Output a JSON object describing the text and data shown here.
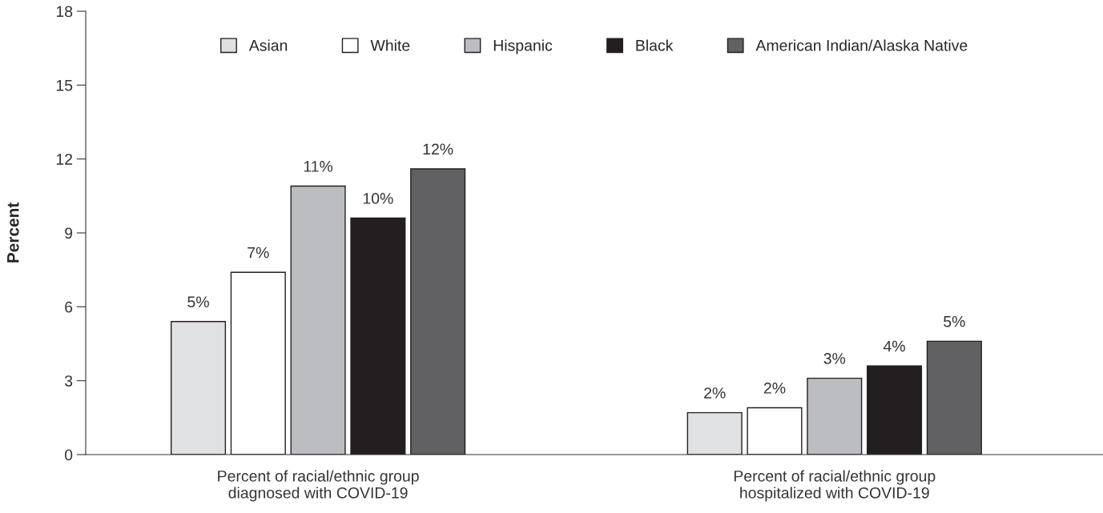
{
  "chart_data": {
    "type": "bar",
    "ylabel": "Percent",
    "categories": [
      "Percent of racial/ethnic group\ndiagnosed with COVID-19",
      "Percent of racial/ethnic group\nhospitalized with COVID-19"
    ],
    "series": [
      {
        "name": "Asian",
        "color": "#e0e1e3",
        "values": [
          5.4,
          1.7
        ],
        "value_labels": [
          "5%",
          "2%"
        ]
      },
      {
        "name": "White",
        "color": "#ffffff",
        "values": [
          7.4,
          1.9
        ],
        "value_labels": [
          "7%",
          "2%"
        ]
      },
      {
        "name": "Hispanic",
        "color": "#bcbdc0",
        "values": [
          10.9,
          3.1
        ],
        "value_labels": [
          "11%",
          "3%"
        ]
      },
      {
        "name": "Black",
        "color": "#231f20",
        "values": [
          9.6,
          3.6
        ],
        "value_labels": [
          "10%",
          "4%"
        ]
      },
      {
        "name": "American Indian/Alaska Native",
        "color": "#616163",
        "values": [
          11.6,
          4.6
        ],
        "value_labels": [
          "12%",
          "5%"
        ]
      }
    ],
    "ylim": [
      0,
      18
    ],
    "yticks": [
      0,
      3,
      6,
      9,
      12,
      15,
      18
    ],
    "grid": false,
    "legend": "top"
  }
}
